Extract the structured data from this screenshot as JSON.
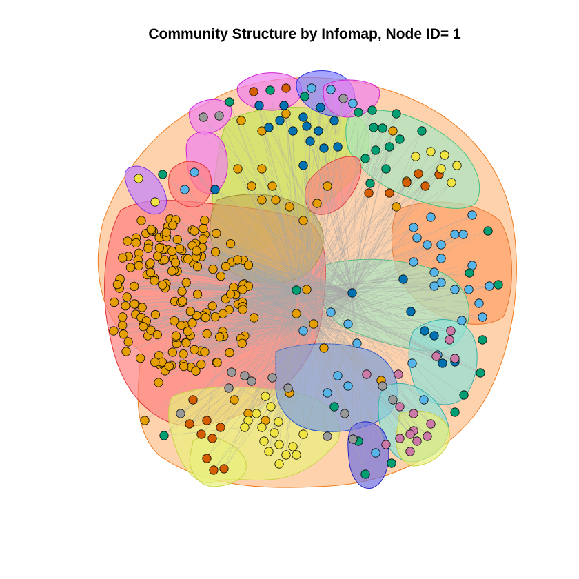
{
  "title": "Community Structure by Infomap, Node ID= 1",
  "palette": {
    "orange": "#E69F00",
    "vermillion": "#D55E00",
    "skyblue": "#56B4E9",
    "blue": "#0072B2",
    "green": "#009E73",
    "yellow": "#F0E442",
    "pink": "#CC79A7",
    "grey": "#999999",
    "edge": "#a8a8a8"
  },
  "communities": [
    {
      "name": "community-outer",
      "fill": "#FDBF8A",
      "stroke": "#F07A1A"
    },
    {
      "name": "community-left-red",
      "fill": "#FF8080",
      "stroke": "#E03030"
    },
    {
      "name": "community-top-green",
      "fill": "#C6E85A",
      "stroke": "#9ACD32"
    },
    {
      "name": "community-right-orange",
      "fill": "#FF9F66",
      "stroke": "#E8742A"
    },
    {
      "name": "community-right-mint",
      "fill": "#A8E6C0",
      "stroke": "#3CC47C"
    },
    {
      "name": "community-center-olive",
      "fill": "#C9B45A",
      "stroke": "#A08A30"
    },
    {
      "name": "community-bottom-yellow",
      "fill": "#E8F07A",
      "stroke": "#C8D040"
    },
    {
      "name": "community-bottom-blue",
      "fill": "#7AA0E0",
      "stroke": "#2050D0"
    },
    {
      "name": "community-bottom-right-teal",
      "fill": "#8EE0D8",
      "stroke": "#30B0A8"
    },
    {
      "name": "community-top-magenta",
      "fill": "#F080F0",
      "stroke": "#D020D0"
    },
    {
      "name": "community-top-blue",
      "fill": "#8080FF",
      "stroke": "#3030E0"
    },
    {
      "name": "community-left-violet",
      "fill": "#C080FF",
      "stroke": "#8030E0"
    },
    {
      "name": "community-small-blue",
      "fill": "#7070E0",
      "stroke": "#2020C0"
    }
  ]
}
